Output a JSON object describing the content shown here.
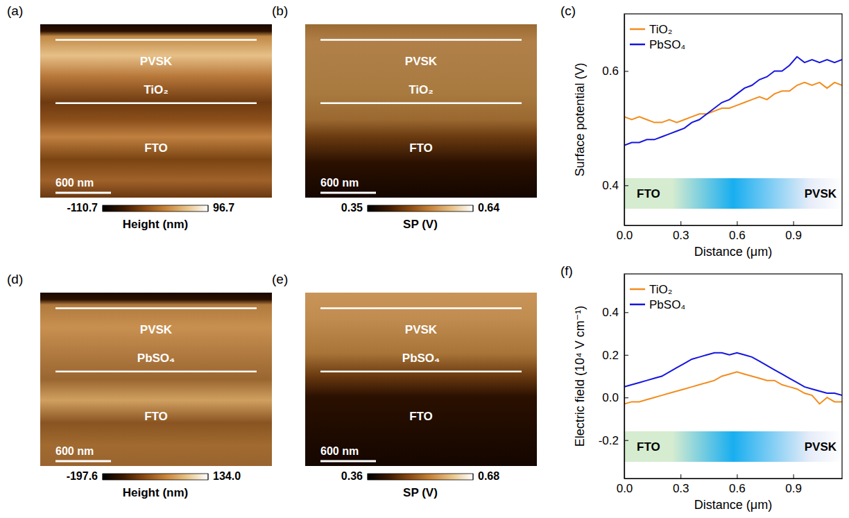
{
  "chart_data": [
    {
      "type": "image",
      "panel_label": "(a)",
      "annotations": [
        "PVSK",
        "TiO₂",
        "FTO"
      ],
      "scale_bar": "600 nm",
      "colorbar": {
        "label": "Height (nm)",
        "range": [
          -110.7,
          96.7
        ],
        "ticks": [
          -110.7,
          96.7
        ]
      }
    },
    {
      "type": "image",
      "panel_label": "(b)",
      "annotations": [
        "PVSK",
        "TiO₂",
        "FTO"
      ],
      "scale_bar": "600 nm",
      "colorbar": {
        "label": "SP (V)",
        "range": [
          0.35,
          0.64
        ],
        "ticks": [
          0.35,
          0.64
        ]
      }
    },
    {
      "type": "line",
      "panel_label": "(c)",
      "y_label": "Surface potential (V)",
      "x_label": "Distance (μm)",
      "xlim": [
        0,
        1.16
      ],
      "xticks": [
        {
          "value": 0,
          "label": "0.0"
        },
        0.3,
        0.6,
        0.9
      ],
      "ylim": [
        0.33,
        0.7
      ],
      "yticks": [
        0.4,
        0.6
      ],
      "legend": "upper left",
      "annotations": [
        "FTO",
        "PVSK"
      ],
      "x": [
        0,
        0.04,
        0.08,
        0.12,
        0.16,
        0.2,
        0.24,
        0.28,
        0.32,
        0.36,
        0.4,
        0.44,
        0.48,
        0.52,
        0.56,
        0.6,
        0.64,
        0.68,
        0.72,
        0.76,
        0.8,
        0.84,
        0.88,
        0.92,
        0.96,
        1.0,
        1.04,
        1.08,
        1.12,
        1.16
      ],
      "series": [
        {
          "name": "TiO₂",
          "color": "#f28c1e",
          "values": [
            0.52,
            0.515,
            0.52,
            0.515,
            0.51,
            0.51,
            0.515,
            0.51,
            0.515,
            0.52,
            0.525,
            0.525,
            0.53,
            0.535,
            0.535,
            0.54,
            0.545,
            0.55,
            0.555,
            0.55,
            0.56,
            0.565,
            0.565,
            0.575,
            0.58,
            0.575,
            0.58,
            0.57,
            0.58,
            0.575
          ]
        },
        {
          "name": "PbSO₄",
          "color": "#1515e0",
          "values": [
            0.47,
            0.475,
            0.475,
            0.48,
            0.48,
            0.485,
            0.49,
            0.495,
            0.5,
            0.51,
            0.515,
            0.525,
            0.535,
            0.545,
            0.55,
            0.56,
            0.57,
            0.575,
            0.585,
            0.59,
            0.6,
            0.6,
            0.61,
            0.625,
            0.615,
            0.62,
            0.615,
            0.62,
            0.615,
            0.62
          ]
        }
      ]
    },
    {
      "type": "image",
      "panel_label": "(d)",
      "annotations": [
        "PVSK",
        "PbSO₄",
        "FTO"
      ],
      "scale_bar": "600 nm",
      "colorbar": {
        "label": "Height (nm)",
        "range": [
          -197.6,
          134
        ],
        "ticks": [
          -197.6,
          {
            "value": 134,
            "label": "134.0"
          }
        ]
      }
    },
    {
      "type": "image",
      "panel_label": "(e)",
      "annotations": [
        "PVSK",
        "PbSO₄",
        "FTO"
      ],
      "scale_bar": "600 nm",
      "colorbar": {
        "label": "SP (V)",
        "range": [
          0.36,
          0.68
        ],
        "ticks": [
          0.36,
          0.68
        ]
      }
    },
    {
      "type": "line",
      "panel_label": "(f)",
      "y_label": "Electric field (10⁴ V cm⁻¹)",
      "x_label": "Distance (μm)",
      "xlim": [
        0,
        1.16
      ],
      "xticks": [
        {
          "value": 0,
          "label": "0.0"
        },
        0.3,
        0.6,
        0.9
      ],
      "ylim": [
        -0.38,
        0.58
      ],
      "yticks": [
        -0.2,
        {
          "value": 0,
          "label": "0.0"
        },
        0.2,
        0.4
      ],
      "legend": "upper left",
      "annotations": [
        "FTO",
        "PVSK"
      ],
      "x": [
        0,
        0.04,
        0.08,
        0.12,
        0.16,
        0.2,
        0.24,
        0.28,
        0.32,
        0.36,
        0.4,
        0.44,
        0.48,
        0.52,
        0.56,
        0.6,
        0.64,
        0.68,
        0.72,
        0.76,
        0.8,
        0.84,
        0.88,
        0.92,
        0.96,
        1.0,
        1.04,
        1.08,
        1.12,
        1.16
      ],
      "series": [
        {
          "name": "TiO₂",
          "color": "#f28c1e",
          "values": [
            -0.03,
            -0.02,
            -0.02,
            -0.01,
            0,
            0.01,
            0.02,
            0.03,
            0.04,
            0.05,
            0.06,
            0.07,
            0.08,
            0.1,
            0.11,
            0.12,
            0.11,
            0.1,
            0.09,
            0.08,
            0.08,
            0.06,
            0.05,
            0.04,
            0.02,
            0.01,
            -0.03,
            0,
            -0.02,
            -0.02
          ]
        },
        {
          "name": "PbSO₄",
          "color": "#1515e0",
          "values": [
            0.05,
            0.06,
            0.07,
            0.08,
            0.09,
            0.1,
            0.12,
            0.14,
            0.16,
            0.18,
            0.19,
            0.2,
            0.21,
            0.21,
            0.2,
            0.21,
            0.2,
            0.19,
            0.17,
            0.15,
            0.13,
            0.11,
            0.09,
            0.07,
            0.05,
            0.04,
            0.03,
            0.02,
            0.02,
            0.01
          ]
        }
      ]
    }
  ]
}
